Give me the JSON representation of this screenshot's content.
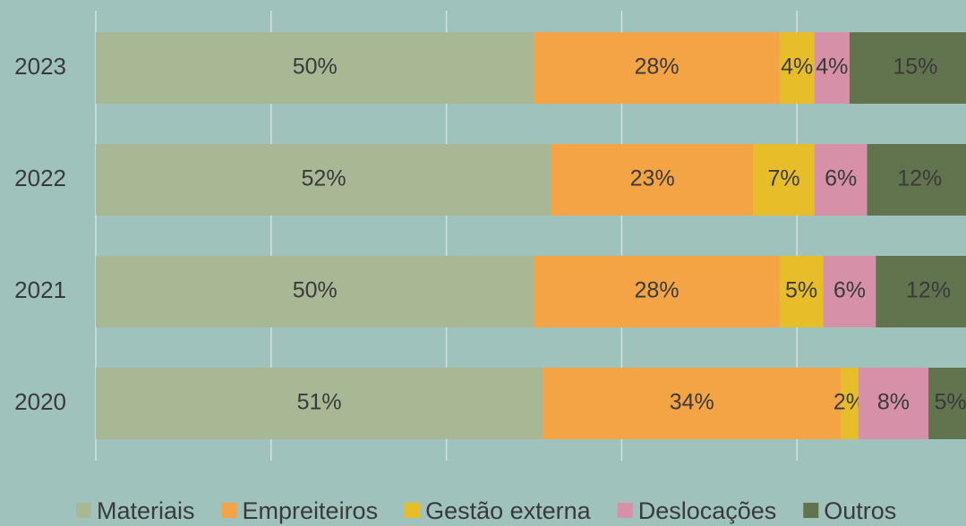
{
  "chart_data": {
    "type": "stacked-bar-horizontal",
    "categories": [
      "2023",
      "2022",
      "2021",
      "2020"
    ],
    "series": [
      {
        "name": "Materiais",
        "color": "#a8b894",
        "values": [
          50,
          52,
          50,
          51
        ],
        "value_labels": [
          "50%",
          "52%",
          "50%",
          "51%"
        ]
      },
      {
        "name": "Empreiteiros",
        "color": "#f4a444",
        "values": [
          28,
          23,
          28,
          34
        ],
        "value_labels": [
          "28%",
          "23%",
          "28%",
          "34%"
        ]
      },
      {
        "name": "Gestão externa",
        "color": "#e8bd2a",
        "values": [
          4,
          7,
          5,
          2
        ],
        "value_labels": [
          "4%",
          "7%",
          "5%",
          "2%"
        ]
      },
      {
        "name": "Deslocações",
        "color": "#d690a8",
        "values": [
          4,
          6,
          6,
          8
        ],
        "value_labels": [
          "4%",
          "6%",
          "6%",
          "8%"
        ]
      },
      {
        "name": "Outros",
        "color": "#62744e",
        "values": [
          15,
          12,
          12,
          5
        ],
        "value_labels": [
          "15%",
          "12%",
          "12%",
          "5%"
        ]
      }
    ],
    "xlim": [
      0,
      100
    ],
    "xticks": [
      0,
      20,
      40,
      60,
      80,
      100
    ],
    "grid": true,
    "legend": "bottom"
  }
}
